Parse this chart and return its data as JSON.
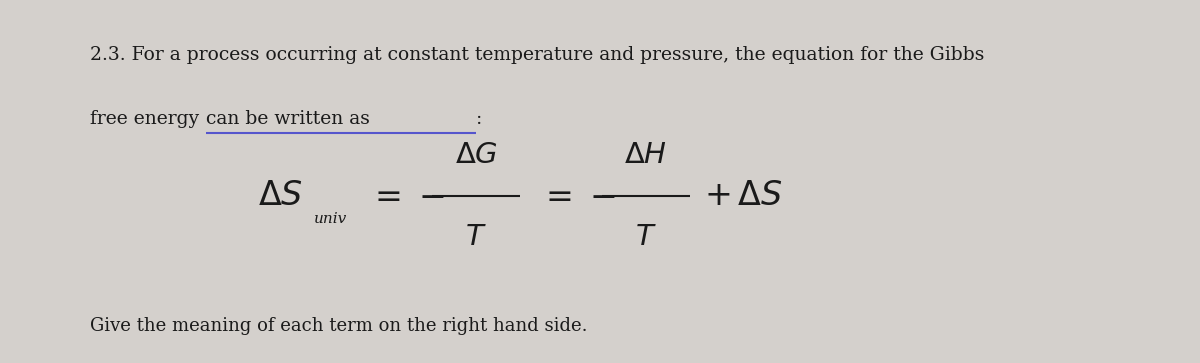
{
  "background_color": "#d4d0cc",
  "text_color": "#1a1a1a",
  "fig_width": 12.0,
  "fig_height": 3.63,
  "dpi": 100,
  "line1": "2.3. For a process occurring at constant temperature and pressure, the equation for the Gibbs",
  "line2_prefix": "free energy ",
  "line2_underlined": "can be written as",
  "line2_suffix": ":",
  "bottom_text": "Give the meaning of each term on the right hand side.",
  "underline_color": "#5555cc",
  "font_size_main": 13.5,
  "font_size_subscript": 11,
  "font_size_bottom": 13.0
}
